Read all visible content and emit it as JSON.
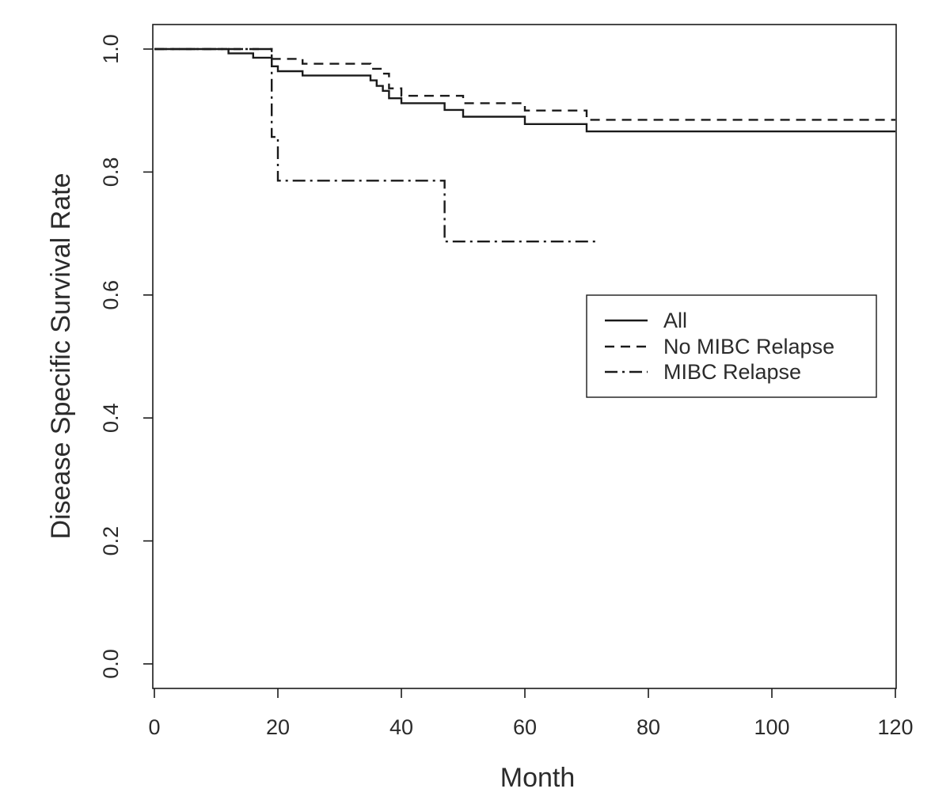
{
  "chart_data": {
    "type": "line",
    "title": "",
    "xlabel": "Month",
    "ylabel": "Disease Specific Survival Rate",
    "xlim": [
      0,
      120
    ],
    "ylim": [
      0,
      1
    ],
    "xticks": [
      0,
      20,
      40,
      60,
      80,
      100,
      120
    ],
    "xtick_labels": [
      "0",
      "20",
      "40",
      "60",
      "80",
      "100",
      "120"
    ],
    "yticks": [
      0,
      0.2,
      0.4,
      0.6,
      0.8,
      1
    ],
    "ytick_labels": [
      "0.0",
      "0.2",
      "0.4",
      "0.6",
      "0.8",
      "1.0"
    ],
    "grid": false,
    "legend_position": "center-right",
    "step": true,
    "series": [
      {
        "name": "All",
        "style": "solid",
        "color": "#1a1a1a",
        "x": [
          0,
          12,
          16,
          19,
          20,
          24,
          35,
          36,
          37,
          38,
          40,
          47,
          50,
          60,
          70,
          120
        ],
        "y": [
          1.0,
          0.993,
          0.986,
          0.972,
          0.964,
          0.957,
          0.949,
          0.94,
          0.932,
          0.92,
          0.912,
          0.901,
          0.89,
          0.878,
          0.866,
          0.866
        ]
      },
      {
        "name": "No MIBC Relapse",
        "style": "dashed",
        "color": "#1a1a1a",
        "x": [
          0,
          19,
          24,
          35,
          37,
          38,
          40,
          50,
          60,
          70,
          120
        ],
        "y": [
          1.0,
          0.984,
          0.976,
          0.968,
          0.96,
          0.936,
          0.924,
          0.912,
          0.9,
          0.885,
          0.885
        ]
      },
      {
        "name": "MIBC Relapse",
        "style": "dashdot",
        "color": "#1a1a1a",
        "x": [
          0,
          19,
          20,
          47,
          72
        ],
        "y": [
          1.0,
          0.857,
          0.786,
          0.687,
          0.687
        ]
      }
    ]
  }
}
